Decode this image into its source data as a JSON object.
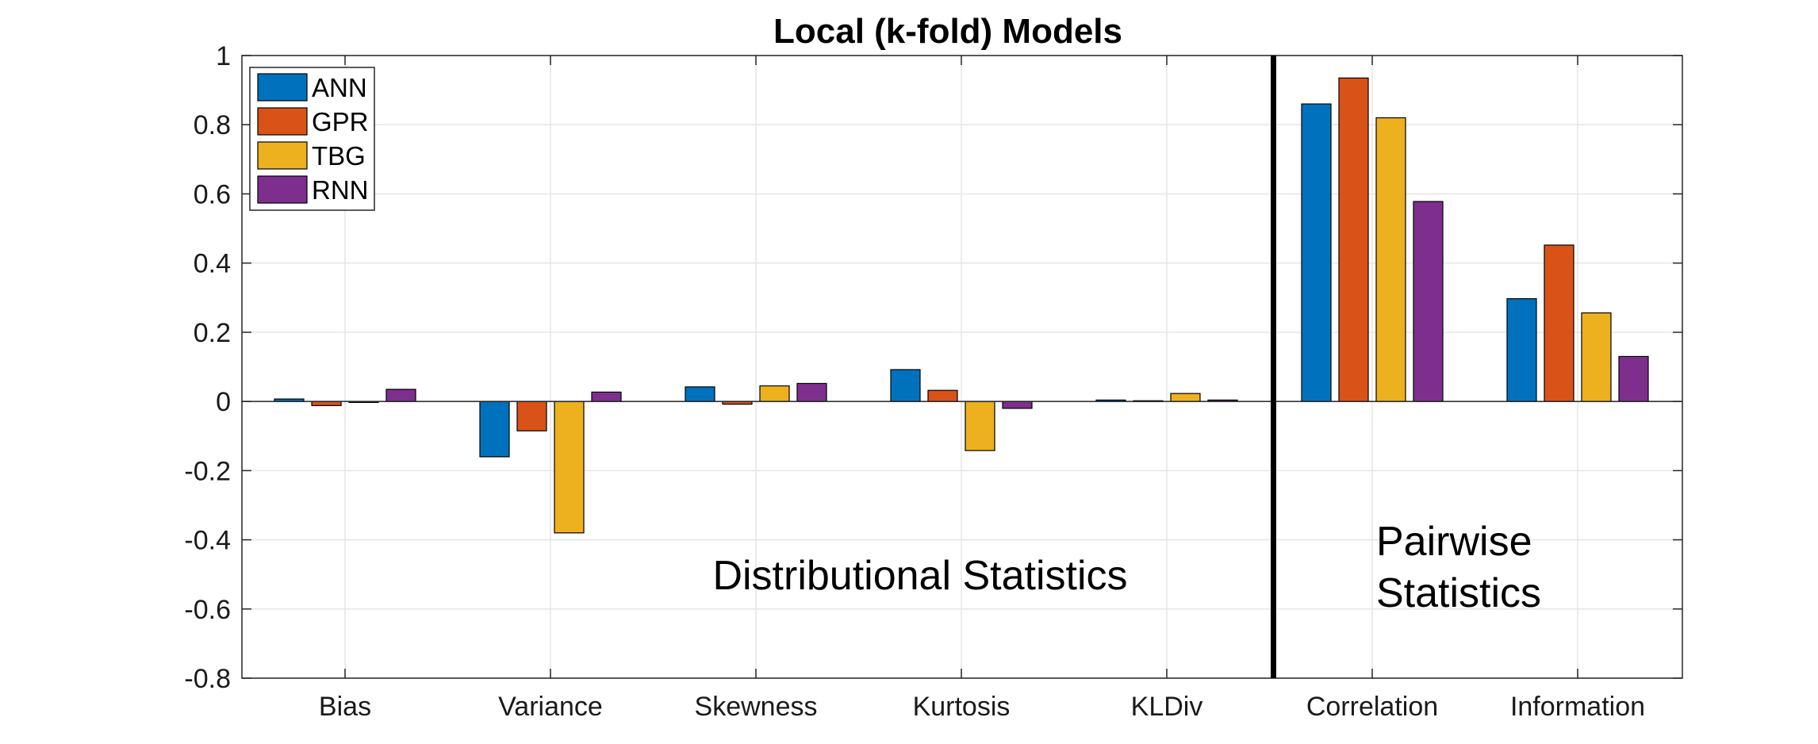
{
  "chart_data": {
    "type": "bar",
    "title": "Local (k-fold) Models",
    "xlabel": "",
    "ylabel": "",
    "categories": [
      "Bias",
      "Variance",
      "Skewness",
      "Kurtosis",
      "KLDiv",
      "Correlation",
      "Information"
    ],
    "series": [
      {
        "name": "ANN",
        "color": "#0072BD",
        "values": [
          0.007,
          -0.16,
          0.042,
          0.092,
          0.004,
          0.86,
          0.297
        ]
      },
      {
        "name": "GPR",
        "color": "#D95319",
        "values": [
          -0.012,
          -0.085,
          -0.008,
          0.032,
          0.002,
          0.935,
          0.452
        ]
      },
      {
        "name": "TBG",
        "color": "#EDB120",
        "values": [
          -0.003,
          -0.38,
          0.045,
          -0.142,
          0.023,
          0.82,
          0.256
        ]
      },
      {
        "name": "RNN",
        "color": "#7E2F8E",
        "values": [
          0.035,
          0.027,
          0.052,
          -0.02,
          0.004,
          0.578,
          0.13
        ]
      }
    ],
    "ylim": [
      -0.8,
      1
    ],
    "yticks": [
      "-0.8",
      "-0.6",
      "-0.4",
      "-0.2",
      "0",
      "0.2",
      "0.4",
      "0.6",
      "0.8",
      "1"
    ],
    "grid": true,
    "legend_position": "top-left",
    "annotations": {
      "distributional": "Distributional Statistics",
      "pairwise_line1": "Pairwise",
      "pairwise_line2": "Statistics"
    },
    "divider_between": [
      "KLDiv",
      "Correlation"
    ]
  }
}
